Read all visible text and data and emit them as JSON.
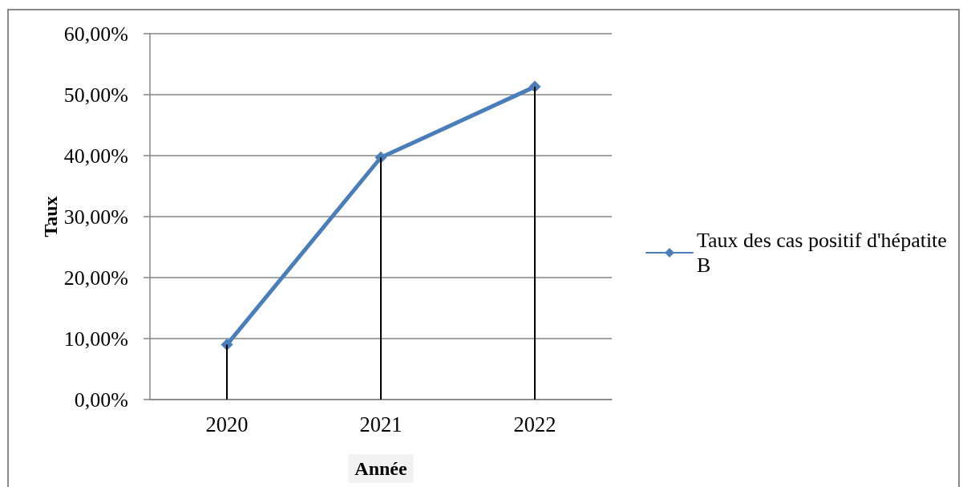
{
  "chart_data": {
    "type": "line",
    "xlabel": "Année",
    "ylabel": "Taux",
    "categories": [
      "2020",
      "2021",
      "2022"
    ],
    "series": [
      {
        "name": "Taux des cas positif d'hépatite B",
        "color": "#4a7ebb",
        "values": [
          9.0,
          39.7,
          51.3
        ]
      },
      {
        "type": "bar",
        "color": "#000000",
        "values": [
          9.0,
          39.7,
          51.3
        ]
      }
    ],
    "ylim": [
      0,
      60
    ],
    "yticks": [
      {
        "value": 0,
        "label": "0,00%"
      },
      {
        "value": 10,
        "label": "10,00%"
      },
      {
        "value": 20,
        "label": "20,00%"
      },
      {
        "value": 30,
        "label": "30,00%"
      },
      {
        "value": 40,
        "label": "40,00%"
      },
      {
        "value": 50,
        "label": "50,00%"
      },
      {
        "value": 60,
        "label": "60,00%"
      }
    ],
    "grid": "y",
    "legend": "right",
    "marker": "diamond",
    "line_style": "solid"
  }
}
